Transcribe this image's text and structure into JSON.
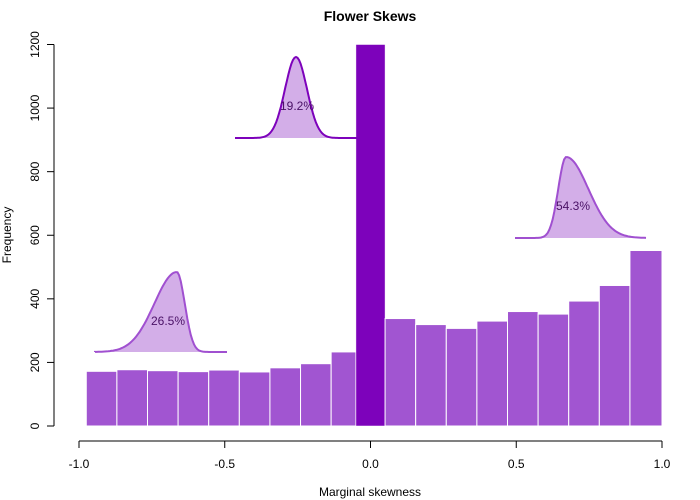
{
  "chart_data": {
    "type": "bar",
    "title": "Flower Skews",
    "xlabel": "Marginal skewness",
    "ylabel": "Frequency",
    "xlim": [
      -1.0,
      1.0
    ],
    "ylim": [
      0,
      1200
    ],
    "x_ticks": [
      -1.0,
      -0.5,
      0.0,
      0.5,
      1.0
    ],
    "x_tick_labels": [
      "-1.0",
      "-0.5",
      "0.0",
      "0.5",
      "1.0"
    ],
    "y_ticks": [
      0,
      200,
      400,
      600,
      800,
      1000,
      1200
    ],
    "y_tick_labels": [
      "0",
      "200",
      "400",
      "600",
      "800",
      "1000",
      "1200"
    ],
    "bin_edges": [
      -0.975,
      -0.87,
      -0.765,
      -0.66,
      -0.555,
      -0.45,
      -0.345,
      -0.24,
      -0.135,
      -0.05,
      0.05,
      0.155,
      0.26,
      0.365,
      0.47,
      0.575,
      0.68,
      0.785,
      0.89,
      1.0
    ],
    "values": [
      172,
      177,
      174,
      171,
      176,
      170,
      183,
      196,
      233,
      1200,
      338,
      319,
      307,
      330,
      360,
      352,
      393,
      442,
      552
    ],
    "highlight_bin": 9,
    "colors": {
      "bar": "#a155d1",
      "highlight_bar": "#7d02bb",
      "inset_fill": "#d3aee8",
      "inset_line_light": "#a050d0",
      "inset_line_dark": "#7d02bb",
      "inset_text": "#4a1166"
    },
    "grid": false,
    "insets": [
      {
        "label": "26.5%",
        "skew": "left"
      },
      {
        "label": "19.2%",
        "skew": "none"
      },
      {
        "label": "54.3%",
        "skew": "right"
      }
    ]
  }
}
